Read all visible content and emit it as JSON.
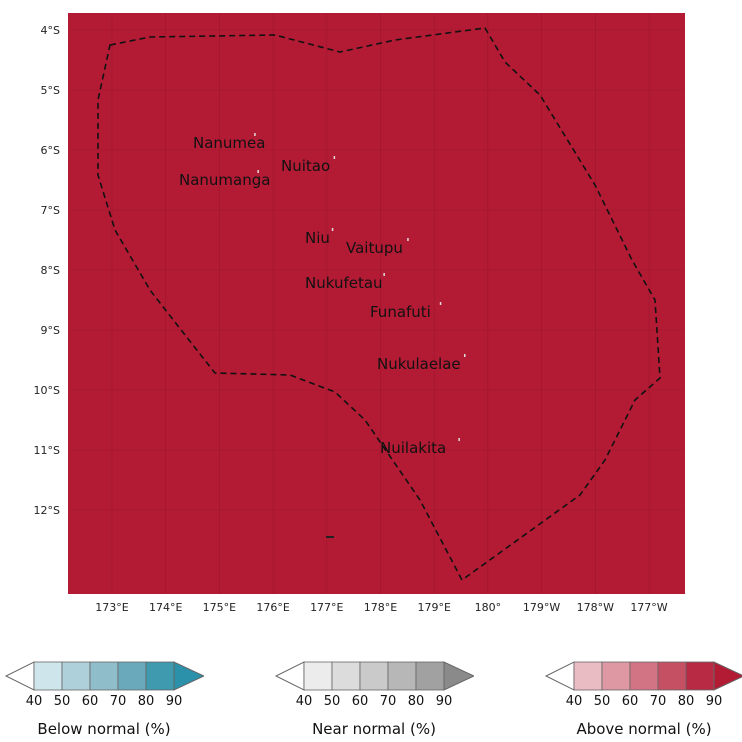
{
  "map": {
    "background_color": "#b31b35",
    "latitude_labels": [
      "4°S",
      "5°S",
      "6°S",
      "7°S",
      "8°S",
      "9°S",
      "10°S",
      "11°S",
      "12°S"
    ],
    "longitude_labels": [
      "173°E",
      "174°E",
      "175°E",
      "176°E",
      "177°E",
      "178°E",
      "179°E",
      "180°",
      "179°W",
      "178°W",
      "177°W"
    ],
    "places": [
      {
        "id": "nanumea",
        "name": "Nanumea"
      },
      {
        "id": "nuitao",
        "name": "Nuitao"
      },
      {
        "id": "nanumanga",
        "name": "Nanumanga"
      },
      {
        "id": "niu",
        "name": "Niu"
      },
      {
        "id": "vaitupu",
        "name": "Vaitupu"
      },
      {
        "id": "nukufetau",
        "name": "Nukufetau"
      },
      {
        "id": "funafuti",
        "name": "Funafuti"
      },
      {
        "id": "nukulaelae",
        "name": "Nukulaelae"
      },
      {
        "id": "nuilakita",
        "name": "Nuilakita"
      }
    ]
  },
  "legends": [
    {
      "id": "below",
      "title": "Below normal (%)",
      "ticks": [
        "40",
        "50",
        "60",
        "70",
        "80",
        "90"
      ],
      "colors": [
        "#cfe5ec",
        "#aed0da",
        "#8fbdca",
        "#6aa9bb",
        "#3f99af",
        "#2b91ab"
      ]
    },
    {
      "id": "near",
      "title": "Near normal (%)",
      "ticks": [
        "40",
        "50",
        "60",
        "70",
        "80",
        "90"
      ],
      "colors": [
        "#ececec",
        "#dcdcdc",
        "#cacaca",
        "#b7b7b7",
        "#a1a1a1",
        "#8a8a8a"
      ]
    },
    {
      "id": "above",
      "title": "Above normal (%)",
      "ticks": [
        "40",
        "50",
        "60",
        "70",
        "80",
        "90"
      ],
      "colors": [
        "#e9bcc4",
        "#dd98a4",
        "#d27483",
        "#c54f63",
        "#b82a43",
        "#b31b35"
      ]
    }
  ]
}
